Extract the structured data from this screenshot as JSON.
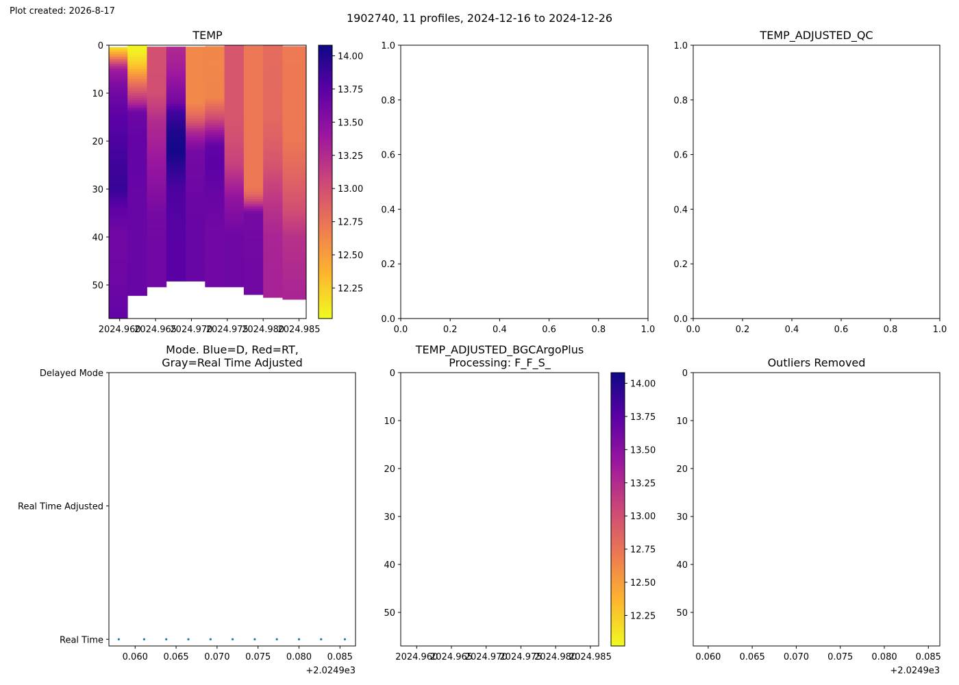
{
  "created_label": "Plot created: 2026-8-17",
  "figure_title": "1902740, 11 profiles, 2024-12-16 to 2024-12-26",
  "colormap": [
    "#f0f921",
    "#fdb42f",
    "#ed7953",
    "#cc4778",
    "#9c179e",
    "#5c01a6",
    "#0d0887"
  ],
  "nan_color": "#ffffff",
  "chart_data": [
    {
      "id": "temp",
      "type": "heatmap",
      "title": "TEMP",
      "x_tick_labels": [
        "2024.960",
        "2024.965",
        "2024.970",
        "2024.975",
        "2024.980",
        "2024.985"
      ],
      "x_ticks": [
        2024.96,
        2024.965,
        2024.97,
        2024.975,
        2024.98,
        2024.985
      ],
      "xlim": [
        2024.9585,
        2024.986
      ],
      "ylim": [
        57,
        0
      ],
      "y_ticks": [
        0,
        10,
        20,
        30,
        40,
        50
      ],
      "y_tick_labels": [
        "0",
        "10",
        "20",
        "30",
        "40",
        "50"
      ],
      "colorbar": {
        "range": [
          12.02,
          14.08
        ],
        "ticks": [
          12.25,
          12.5,
          12.75,
          13.0,
          13.25,
          13.5,
          13.75,
          14.0
        ],
        "tick_labels": [
          "12.25",
          "12.50",
          "12.75",
          "13.00",
          "13.25",
          "13.50",
          "13.75",
          "14.00"
        ]
      },
      "profiles": [
        {
          "x0": 2024.9585,
          "x1": 2024.9611,
          "top": 0.4,
          "bottom": 57,
          "depths": [
            0,
            1,
            2,
            3,
            4,
            5,
            8,
            10,
            14,
            20,
            25,
            30,
            34,
            40,
            50,
            57
          ],
          "temps": [
            12.05,
            12.25,
            12.5,
            12.8,
            13.1,
            13.35,
            13.55,
            13.62,
            13.72,
            13.8,
            13.86,
            13.9,
            13.72,
            13.62,
            13.65,
            13.7
          ]
        },
        {
          "x0": 2024.9611,
          "x1": 2024.9638,
          "top": 0.0,
          "bottom": 52.2,
          "depths": [
            0,
            2,
            4,
            6,
            8,
            10,
            12,
            14,
            20,
            30,
            40,
            52.2
          ],
          "temps": [
            12.02,
            12.1,
            12.25,
            12.5,
            12.75,
            13.0,
            13.25,
            13.65,
            13.7,
            13.68,
            13.68,
            13.68
          ]
        },
        {
          "x0": 2024.9638,
          "x1": 2024.9665,
          "top": 0.3,
          "bottom": 50.4,
          "depths": [
            0,
            10,
            13,
            16,
            20,
            25,
            30,
            35,
            40,
            50.4
          ],
          "temps": [
            12.98,
            13.0,
            13.12,
            13.25,
            13.32,
            13.42,
            13.5,
            13.6,
            13.62,
            13.62
          ]
        },
        {
          "x0": 2024.9665,
          "x1": 2024.9692,
          "top": 0.3,
          "bottom": 49.2,
          "depths": [
            0,
            5,
            9,
            12,
            14,
            18,
            22,
            26,
            30,
            40,
            49.2
          ],
          "temps": [
            13.25,
            13.35,
            13.5,
            13.62,
            13.85,
            14.0,
            14.05,
            13.92,
            13.8,
            13.75,
            13.75
          ]
        },
        {
          "x0": 2024.9692,
          "x1": 2024.9719,
          "top": 0.3,
          "bottom": 49.2,
          "depths": [
            0,
            12,
            14,
            16,
            18,
            20,
            22,
            30,
            40,
            49.2
          ],
          "temps": [
            12.62,
            12.62,
            12.75,
            12.95,
            13.25,
            13.45,
            13.6,
            13.65,
            13.68,
            13.68
          ]
        },
        {
          "x0": 2024.9719,
          "x1": 2024.9746,
          "top": 0.2,
          "bottom": 50.4,
          "depths": [
            0,
            11,
            13,
            15,
            17,
            19,
            21,
            25,
            30,
            40,
            50.4
          ],
          "temps": [
            12.62,
            12.64,
            12.82,
            13.0,
            13.25,
            13.5,
            13.7,
            13.74,
            13.68,
            13.62,
            13.62
          ]
        },
        {
          "x0": 2024.9746,
          "x1": 2024.9773,
          "top": 0.0,
          "bottom": 50.4,
          "depths": [
            0,
            15,
            20,
            25,
            28,
            32,
            36,
            40,
            50.4
          ],
          "temps": [
            12.95,
            12.95,
            13.0,
            13.1,
            13.25,
            13.45,
            13.55,
            13.65,
            13.65
          ]
        },
        {
          "x0": 2024.9773,
          "x1": 2024.98,
          "top": 0.1,
          "bottom": 52.0,
          "depths": [
            0,
            30,
            31,
            32,
            33,
            34,
            35,
            45,
            52.0
          ],
          "temps": [
            12.72,
            12.72,
            12.82,
            12.95,
            13.15,
            13.4,
            13.6,
            13.62,
            13.62
          ]
        },
        {
          "x0": 2024.98,
          "x1": 2024.9827,
          "top": 0.0,
          "bottom": 52.6,
          "depths": [
            0,
            15,
            20,
            25,
            28,
            33,
            40,
            52.6
          ],
          "temps": [
            12.8,
            12.82,
            12.88,
            12.96,
            13.05,
            13.18,
            13.3,
            13.32
          ]
        },
        {
          "x0": 2024.9827,
          "x1": 2024.986,
          "top": 0.2,
          "bottom": 53.0,
          "depths": [
            0,
            20,
            25,
            30,
            35,
            40,
            50,
            53.0
          ],
          "temps": [
            12.7,
            12.72,
            12.8,
            12.9,
            13.02,
            13.2,
            13.28,
            13.3
          ]
        }
      ]
    },
    {
      "id": "temp_adjusted_qc",
      "type": "scatter",
      "title": "TEMP_ADJUSTED_QC",
      "xlim": [
        0,
        1
      ],
      "ylim": [
        0,
        1
      ],
      "x_ticks": [
        0,
        0.2,
        0.4,
        0.6,
        0.8,
        1.0
      ],
      "x_tick_labels": [
        "0.0",
        "0.2",
        "0.4",
        "0.6",
        "0.8",
        "1.0"
      ],
      "y_ticks": [
        0,
        0.2,
        0.4,
        0.6,
        0.8,
        1.0
      ],
      "y_tick_labels": [
        "0.0",
        "0.2",
        "0.4",
        "0.6",
        "0.8",
        "1.0"
      ],
      "points": []
    },
    {
      "id": "mode",
      "type": "scatter",
      "title": "Mode. Blue=D, Red=RT,\nGray=Real Time Adjusted",
      "xlim": [
        0.0568,
        0.0869
      ],
      "x_offset_label": "+2.0249e3",
      "x_ticks": [
        0.06,
        0.065,
        0.07,
        0.075,
        0.08,
        0.085
      ],
      "x_tick_labels": [
        "0.060",
        "0.065",
        "0.070",
        "0.075",
        "0.080",
        "0.085"
      ],
      "y_categories": [
        "Real Time",
        "Real Time Adjusted",
        "Delayed Mode"
      ],
      "ylim": [
        -0.05,
        2.0
      ],
      "point_color": "#1f77b4",
      "points": [
        {
          "x": 0.058,
          "y": 0
        },
        {
          "x": 0.0611,
          "y": 0
        },
        {
          "x": 0.0638,
          "y": 0
        },
        {
          "x": 0.0665,
          "y": 0
        },
        {
          "x": 0.0692,
          "y": 0
        },
        {
          "x": 0.0719,
          "y": 0
        },
        {
          "x": 0.0746,
          "y": 0
        },
        {
          "x": 0.0773,
          "y": 0
        },
        {
          "x": 0.08,
          "y": 0
        },
        {
          "x": 0.0827,
          "y": 0
        },
        {
          "x": 0.0856,
          "y": 0
        }
      ]
    },
    {
      "id": "temp_adjusted_bgc",
      "type": "heatmap",
      "title": "TEMP_ADJUSTED_BGCArgoPlus\nProcessing: F_F_S_",
      "x_ticks": [
        2024.96,
        2024.965,
        2024.97,
        2024.975,
        2024.98,
        2024.985
      ],
      "x_tick_labels": [
        "2024.960",
        "2024.965",
        "2024.970",
        "2024.975",
        "2024.980",
        "2024.985"
      ],
      "xlim": [
        2024.9577,
        2024.9862
      ],
      "ylim": [
        57,
        0
      ],
      "y_ticks": [
        0,
        10,
        20,
        30,
        40,
        50
      ],
      "y_tick_labels": [
        "0",
        "10",
        "20",
        "30",
        "40",
        "50"
      ],
      "colorbar": {
        "range": [
          12.02,
          14.08
        ],
        "ticks": [
          12.25,
          12.5,
          12.75,
          13.0,
          13.25,
          13.5,
          13.75,
          14.0
        ],
        "tick_labels": [
          "12.25",
          "12.50",
          "12.75",
          "13.00",
          "13.25",
          "13.50",
          "13.75",
          "14.00"
        ]
      },
      "profiles": []
    },
    {
      "id": "outliers_removed",
      "type": "scatter",
      "title": "Outliers Removed",
      "xlim": [
        0.0583,
        0.0863
      ],
      "x_offset_label": "+2.0249e3",
      "x_ticks": [
        0.06,
        0.065,
        0.07,
        0.075,
        0.08,
        0.085
      ],
      "x_tick_labels": [
        "0.060",
        "0.065",
        "0.070",
        "0.075",
        "0.080",
        "0.085"
      ],
      "ylim": [
        57,
        0
      ],
      "y_ticks": [
        0,
        10,
        20,
        30,
        40,
        50
      ],
      "y_tick_labels": [
        "0",
        "10",
        "20",
        "30",
        "40",
        "50"
      ],
      "points": []
    }
  ]
}
